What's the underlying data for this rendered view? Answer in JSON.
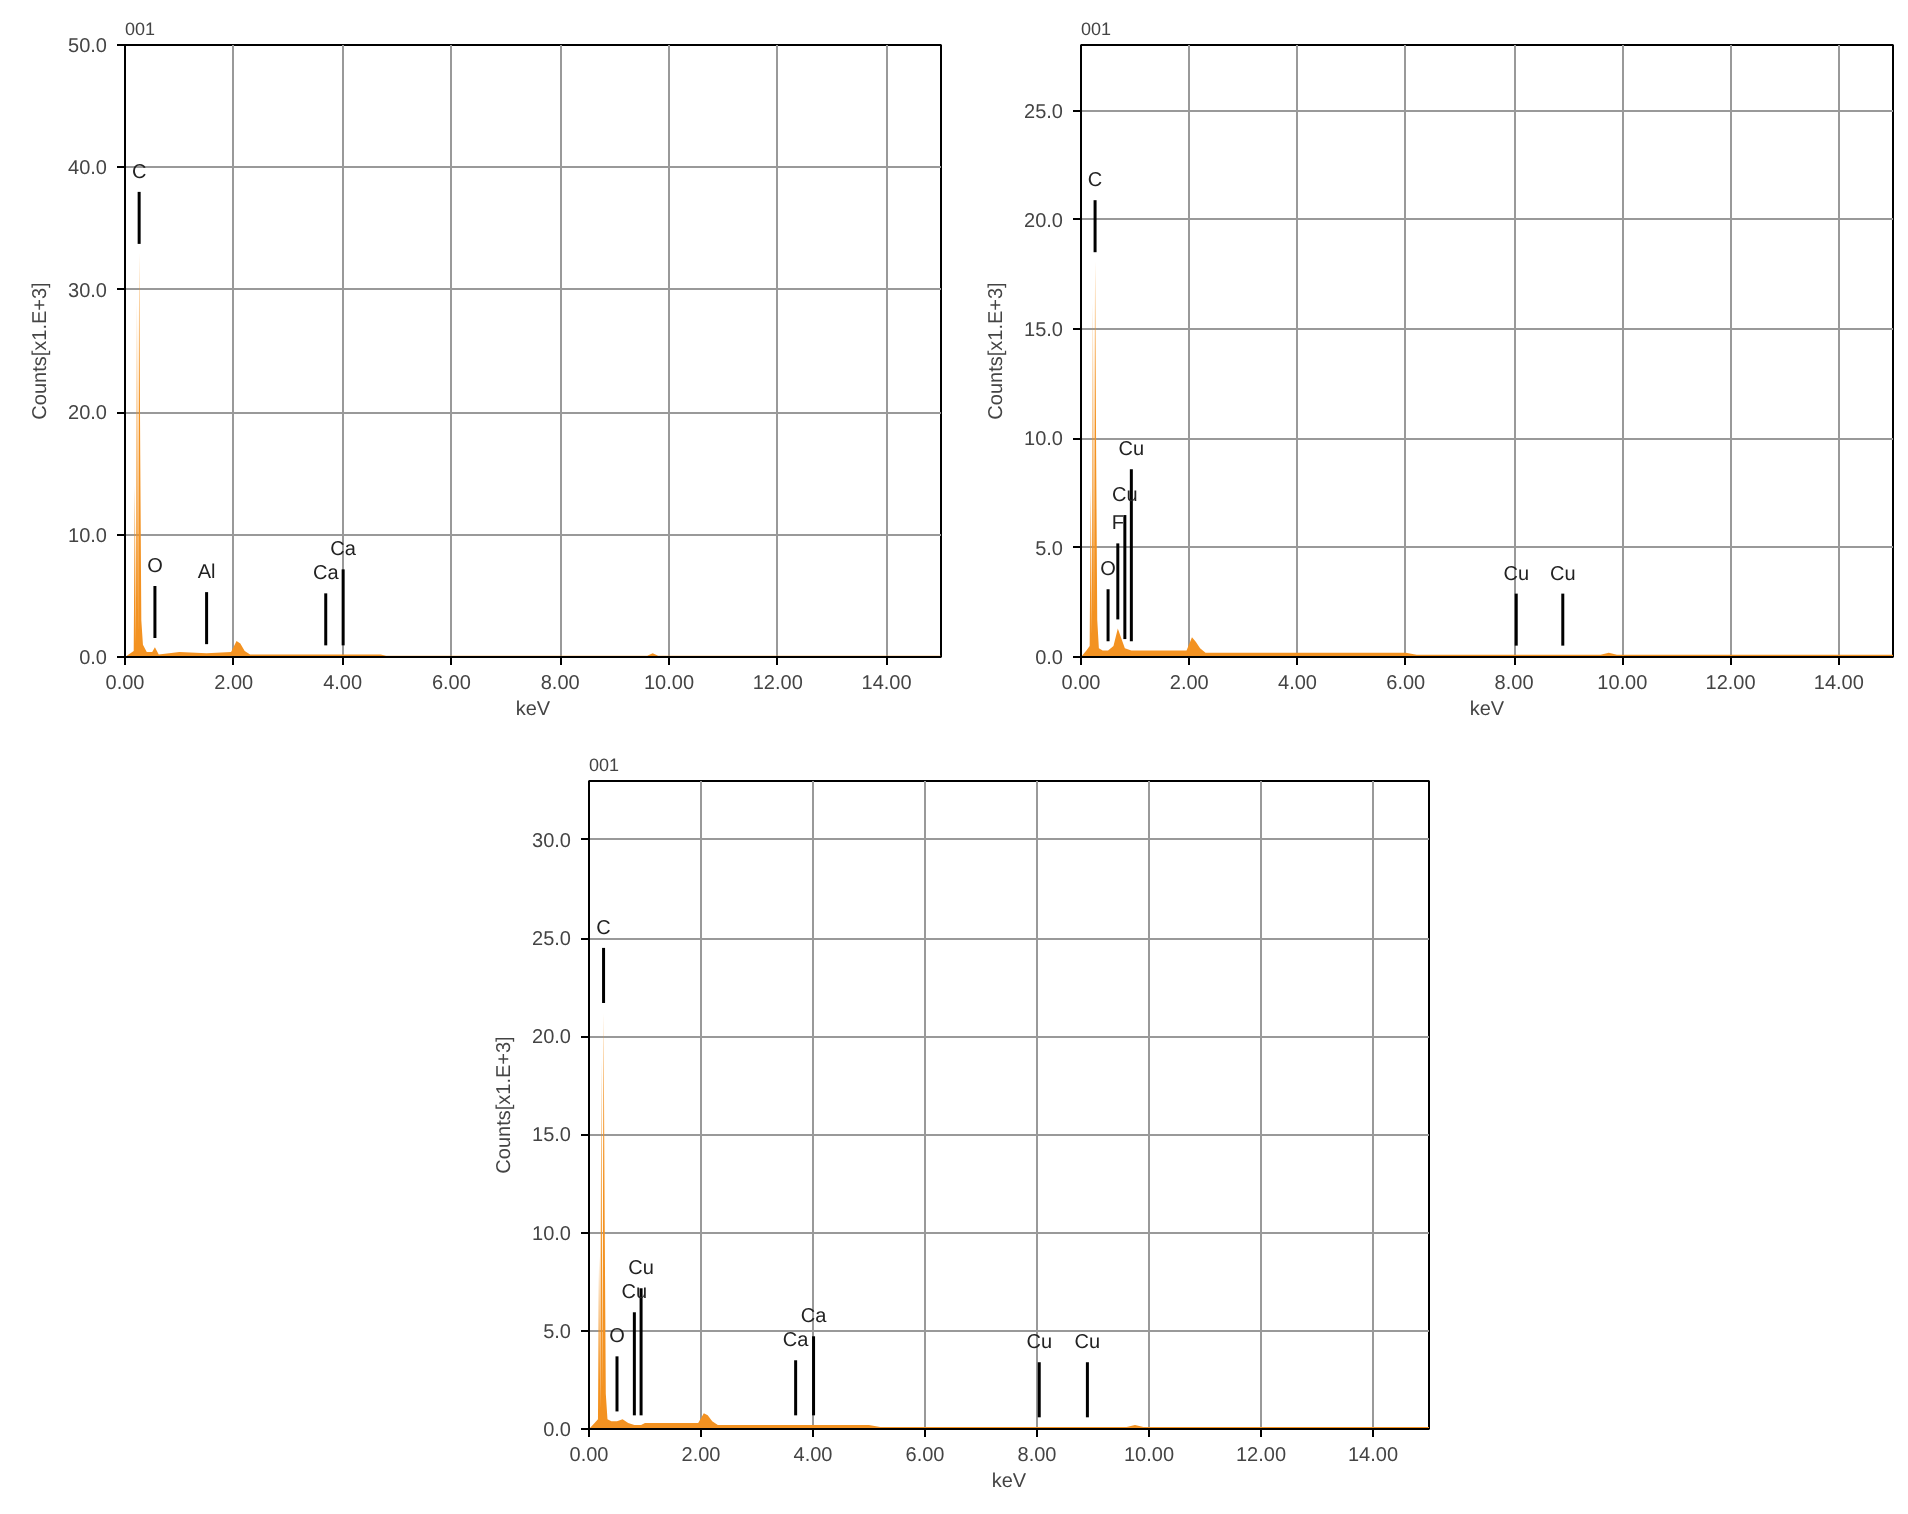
{
  "chart_data": [
    {
      "type": "area",
      "title": "001",
      "xlabel": "keV",
      "ylabel": "Counts[x1.E+3]",
      "grid": true,
      "xlim": [
        0,
        15
      ],
      "ylim": [
        0,
        50
      ],
      "xticks": [
        {
          "value": 0,
          "label": "0.00"
        },
        {
          "value": 2,
          "label": "2.00"
        },
        {
          "value": 4,
          "label": "4.00"
        },
        {
          "value": 6,
          "label": "6.00"
        },
        {
          "value": 8,
          "label": "8.00"
        },
        {
          "value": 10,
          "label": "10.00"
        },
        {
          "value": 12,
          "label": "12.00"
        },
        {
          "value": 14,
          "label": "14.00"
        }
      ],
      "yticks": [
        {
          "value": 0,
          "label": "0.0"
        },
        {
          "value": 10,
          "label": "10.0"
        },
        {
          "value": 20,
          "label": "20.0"
        },
        {
          "value": 30,
          "label": "30.0"
        },
        {
          "value": 40,
          "label": "40.0"
        },
        {
          "value": 50,
          "label": "50.0"
        }
      ],
      "x": [
        0,
        0.1,
        0.16,
        0.18,
        0.2,
        0.22,
        0.24,
        0.26,
        0.28,
        0.3,
        0.33,
        0.4,
        0.5,
        0.55,
        0.62,
        1.0,
        1.5,
        1.95,
        2.05,
        2.12,
        2.2,
        2.3,
        3.0,
        3.69,
        4.01,
        4.7,
        4.8,
        9.6,
        9.7,
        9.8,
        15
      ],
      "series": [
        {
          "color": "#f39221",
          "values": [
            0,
            0.3,
            0.5,
            14,
            1,
            29,
            2,
            33,
            16.5,
            3,
            1,
            0.4,
            0.4,
            0.8,
            0.2,
            0.4,
            0.3,
            0.4,
            1.3,
            1.1,
            0.5,
            0.2,
            0.2,
            0.2,
            0.2,
            0.2,
            0.1,
            0.1,
            0.3,
            0.1,
            0.1
          ]
        }
      ],
      "annotations": [
        {
          "text": "C",
          "x": 0.26,
          "y": 33
        },
        {
          "text": "O",
          "x": 0.55,
          "y": 0.8
        },
        {
          "text": "Al",
          "x": 1.5,
          "y": 0.3
        },
        {
          "text": "Ca",
          "x": 3.69,
          "y": 0.2
        },
        {
          "text": "Ca",
          "x": 4.01,
          "y": 0.2
        }
      ]
    },
    {
      "type": "area",
      "title": "001",
      "xlabel": "keV",
      "ylabel": "Counts[x1.E+3]",
      "grid": true,
      "xlim": [
        0,
        15
      ],
      "ylim": [
        0,
        28
      ],
      "xticks": [
        {
          "value": 0,
          "label": "0.00"
        },
        {
          "value": 2,
          "label": "2.00"
        },
        {
          "value": 4,
          "label": "4.00"
        },
        {
          "value": 6,
          "label": "6.00"
        },
        {
          "value": 8,
          "label": "8.00"
        },
        {
          "value": 10,
          "label": "10.00"
        },
        {
          "value": 12,
          "label": "12.00"
        },
        {
          "value": 14,
          "label": "14.00"
        }
      ],
      "yticks": [
        {
          "value": 0,
          "label": "0.0"
        },
        {
          "value": 5,
          "label": "5.0"
        },
        {
          "value": 10,
          "label": "10.0"
        },
        {
          "value": 15,
          "label": "15.0"
        },
        {
          "value": 20,
          "label": "20.0"
        },
        {
          "value": 25,
          "label": "25.0"
        }
      ],
      "x": [
        0,
        0.1,
        0.16,
        0.18,
        0.2,
        0.22,
        0.24,
        0.26,
        0.28,
        0.3,
        0.33,
        0.4,
        0.5,
        0.6,
        0.68,
        0.81,
        0.93,
        1.0,
        1.5,
        1.95,
        2.05,
        2.12,
        2.2,
        2.3,
        3.0,
        6.0,
        6.2,
        8.04,
        8.9,
        9.6,
        9.75,
        9.9,
        15
      ],
      "series": [
        {
          "color": "#f39221",
          "values": [
            0,
            0.3,
            0.5,
            7.8,
            1,
            16.2,
            2,
            18.1,
            9.2,
            1.7,
            0.4,
            0.3,
            0.3,
            0.5,
            1.3,
            0.4,
            0.3,
            0.3,
            0.3,
            0.3,
            0.9,
            0.7,
            0.4,
            0.2,
            0.2,
            0.2,
            0.1,
            0.1,
            0.1,
            0.1,
            0.2,
            0.1,
            0.1
          ]
        }
      ],
      "annotations": [
        {
          "text": "C",
          "x": 0.26,
          "y": 18.1
        },
        {
          "text": "O",
          "x": 0.5,
          "y": 0.3
        },
        {
          "text": "F",
          "x": 0.68,
          "y": 1.3
        },
        {
          "text": "Cu",
          "x": 0.81,
          "y": 0.4
        },
        {
          "text": "Cu",
          "x": 0.93,
          "y": 0.3
        },
        {
          "text": "Cu",
          "x": 8.04,
          "y": 0.1
        },
        {
          "text": "Cu",
          "x": 8.9,
          "y": 0.1
        }
      ]
    },
    {
      "type": "area",
      "title": "001",
      "xlabel": "keV",
      "ylabel": "Counts[x1.E+3]",
      "grid": true,
      "xlim": [
        0,
        15
      ],
      "ylim": [
        0,
        33
      ],
      "xticks": [
        {
          "value": 0,
          "label": "0.00"
        },
        {
          "value": 2,
          "label": "2.00"
        },
        {
          "value": 4,
          "label": "4.00"
        },
        {
          "value": 6,
          "label": "6.00"
        },
        {
          "value": 8,
          "label": "8.00"
        },
        {
          "value": 10,
          "label": "10.00"
        },
        {
          "value": 12,
          "label": "12.00"
        },
        {
          "value": 14,
          "label": "14.00"
        }
      ],
      "yticks": [
        {
          "value": 0,
          "label": "0.0"
        },
        {
          "value": 5,
          "label": "5.0"
        },
        {
          "value": 10,
          "label": "10.0"
        },
        {
          "value": 15,
          "label": "15.0"
        },
        {
          "value": 20,
          "label": "20.0"
        },
        {
          "value": 25,
          "label": "25.0"
        },
        {
          "value": 30,
          "label": "30.0"
        }
      ],
      "x": [
        0,
        0.1,
        0.16,
        0.18,
        0.2,
        0.22,
        0.24,
        0.26,
        0.28,
        0.3,
        0.33,
        0.4,
        0.5,
        0.6,
        0.7,
        0.81,
        0.93,
        1.0,
        1.5,
        1.95,
        2.05,
        2.12,
        2.2,
        2.3,
        3.0,
        3.69,
        4.01,
        5.0,
        5.2,
        8.04,
        8.9,
        9.6,
        9.75,
        9.9,
        15
      ],
      "series": [
        {
          "color": "#f39221",
          "values": [
            0,
            0.3,
            0.5,
            8.8,
            1,
            18.8,
            2,
            21.2,
            10.6,
            1.8,
            0.5,
            0.4,
            0.4,
            0.5,
            0.3,
            0.2,
            0.2,
            0.3,
            0.3,
            0.3,
            0.8,
            0.7,
            0.4,
            0.2,
            0.2,
            0.2,
            0.2,
            0.2,
            0.1,
            0.1,
            0.1,
            0.1,
            0.2,
            0.1,
            0.1
          ]
        }
      ],
      "annotations": [
        {
          "text": "C",
          "x": 0.26,
          "y": 21.2
        },
        {
          "text": "O",
          "x": 0.5,
          "y": 0.4
        },
        {
          "text": "Cu",
          "x": 0.81,
          "y": 0.2
        },
        {
          "text": "Cu",
          "x": 0.93,
          "y": 0.2
        },
        {
          "text": "Ca",
          "x": 3.69,
          "y": 0.2
        },
        {
          "text": "Ca",
          "x": 4.01,
          "y": 0.2
        },
        {
          "text": "Cu",
          "x": 8.04,
          "y": 0.1
        },
        {
          "text": "Cu",
          "x": 8.9,
          "y": 0.1
        }
      ]
    }
  ]
}
